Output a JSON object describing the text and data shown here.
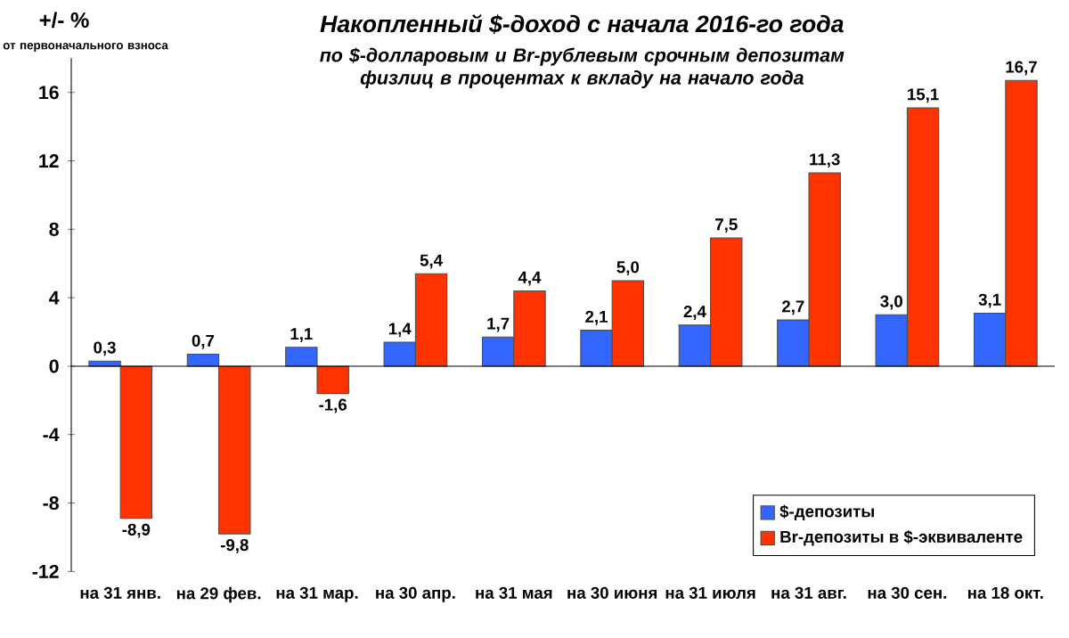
{
  "chart_data": {
    "type": "bar",
    "title": "Накопленный $-доход с начала 2016-го года",
    "subtitle": "по $-долларовым и Br-рублевым срочным депозитам физлиц в процентах к вкладу на начало года",
    "ylabel": "+/- %",
    "annotations": [
      "от первоначального взноса"
    ],
    "categories": [
      "на 31 янв.",
      "на 29 фев.",
      "на 31 мар.",
      "на 30 апр.",
      "на 31 мая",
      "на 30 июня",
      "на 31 июля",
      "на 31 авг.",
      "на 30 сен.",
      "на 18 окт."
    ],
    "series": [
      {
        "name": "$-депозиты",
        "color": "#3366ff",
        "values": [
          0.3,
          0.7,
          1.1,
          1.4,
          1.7,
          2.1,
          2.4,
          2.7,
          3.0,
          3.1
        ],
        "value_labels": [
          "0,3",
          "0,7",
          "1,1",
          "1,4",
          "1,7",
          "2,1",
          "2,4",
          "2,7",
          "3,0",
          "3,1"
        ]
      },
      {
        "name": "Br-депозиты в $-эквиваленте",
        "color": "#ff3300",
        "values": [
          -8.9,
          -9.8,
          -1.6,
          5.4,
          4.4,
          5.0,
          7.5,
          11.3,
          15.1,
          16.7
        ],
        "value_labels": [
          "-8,9",
          "-9,8",
          "-1,6",
          "5,4",
          "4,4",
          "5,0",
          "7,5",
          "11,3",
          "15,1",
          "16,7"
        ]
      }
    ],
    "ylim": [
      -12,
      18
    ],
    "yticks": [
      -12,
      -8,
      -4,
      0,
      4,
      8,
      12,
      16
    ],
    "legend": "bottom right"
  }
}
